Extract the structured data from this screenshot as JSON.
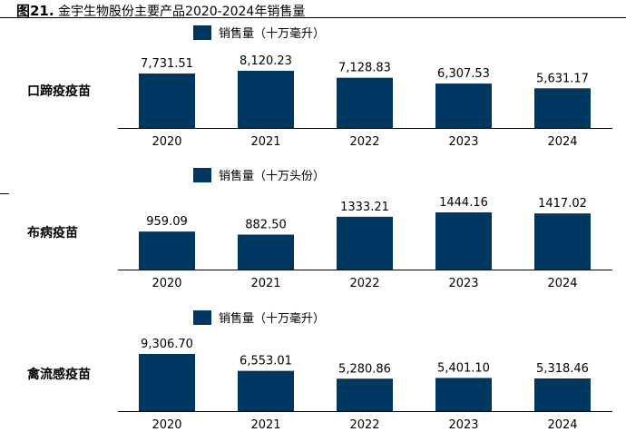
{
  "title": {
    "number": "图21.",
    "text": "金宇生物股份主要产品2020-2024年销售量"
  },
  "colors": {
    "bar": "#003761"
  },
  "chart_data": [
    {
      "type": "bar",
      "row_label": "口蹄疫疫苗",
      "legend": "销售量（十万毫升）",
      "categories": [
        "2020",
        "2021",
        "2022",
        "2023",
        "2024"
      ],
      "values": [
        7731.51,
        8120.23,
        7128.83,
        6307.53,
        5631.17
      ],
      "labels": [
        "7,731.51",
        "8,120.23",
        "7,128.83",
        "6,307.53",
        "5,631.17"
      ]
    },
    {
      "type": "bar",
      "row_label": "布病疫苗",
      "legend": "销售量（十万头份）",
      "categories": [
        "2020",
        "2021",
        "2022",
        "2023",
        "2024"
      ],
      "values": [
        959.09,
        882.5,
        1333.21,
        1444.16,
        1417.02
      ],
      "labels": [
        "959.09",
        "882.50",
        "1333.21",
        "1444.16",
        "1417.02"
      ]
    },
    {
      "type": "bar",
      "row_label": "禽流感疫苗",
      "legend": "销售量（十万毫升）",
      "categories": [
        "2020",
        "2021",
        "2022",
        "2023",
        "2024"
      ],
      "values": [
        9306.7,
        6553.01,
        5280.86,
        5401.1,
        5318.46
      ],
      "labels": [
        "9,306.70",
        "6,553.01",
        "5,280.86",
        "5,401.10",
        "5,318.46"
      ]
    }
  ]
}
